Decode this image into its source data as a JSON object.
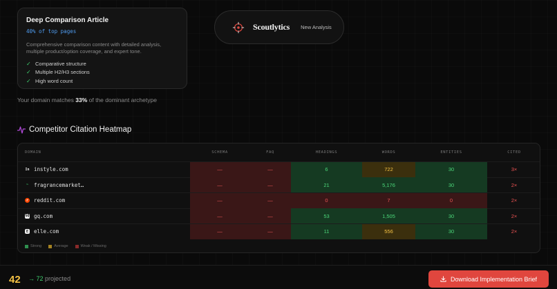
{
  "archetype": {
    "title": "Deep Comparison Article",
    "share": "40% of top pages",
    "description": "Comprehensive comparison content with detailed analysis, multiple product/option coverage, and expert tone.",
    "traits": [
      "Comparative structure",
      "Multiple H2/H3 sections",
      "High word count"
    ]
  },
  "match": {
    "prefix": "Your domain matches ",
    "value": "33%",
    "suffix": " of the dominant archetype"
  },
  "brand": {
    "name": "Scoutlytics",
    "new_analysis_label": "New Analysis",
    "icon": "target-crosshair-icon"
  },
  "heatmap": {
    "title": "Competitor Citation Heatmap",
    "icon": "activity-pulse-icon",
    "columns": [
      "DOMAIN",
      "SCHEMA",
      "FAQ",
      "HEADINGS",
      "WORDS",
      "ENTITIES",
      "CITED"
    ],
    "rows": [
      {
        "domain": "instyle.com",
        "favicon": "In",
        "schema": "—",
        "faq": "—",
        "headings": "6",
        "words": "722",
        "entities": "30",
        "cited": "3×",
        "status": {
          "schema": "weak",
          "faq": "weak",
          "headings": "strong",
          "words": "average",
          "entities": "strong"
        }
      },
      {
        "domain": "fragrancemarket…",
        "favicon": "~",
        "schema": "—",
        "faq": "—",
        "headings": "21",
        "words": "5,176",
        "entities": "30",
        "cited": "2×",
        "status": {
          "schema": "weak",
          "faq": "weak",
          "headings": "strong",
          "words": "strong",
          "entities": "strong"
        }
      },
      {
        "domain": "reddit.com",
        "favicon": "r",
        "schema": "—",
        "faq": "—",
        "headings": "0",
        "words": "7",
        "entities": "0",
        "cited": "2×",
        "status": {
          "schema": "weak",
          "faq": "weak",
          "headings": "weak",
          "words": "weak",
          "entities": "weak"
        }
      },
      {
        "domain": "gq.com",
        "favicon": "GQ",
        "schema": "—",
        "faq": "—",
        "headings": "53",
        "words": "1,505",
        "entities": "30",
        "cited": "2×",
        "status": {
          "schema": "weak",
          "faq": "weak",
          "headings": "strong",
          "words": "strong",
          "entities": "strong"
        }
      },
      {
        "domain": "elle.com",
        "favicon": "E",
        "schema": "—",
        "faq": "—",
        "headings": "11",
        "words": "556",
        "entities": "30",
        "cited": "2×",
        "status": {
          "schema": "weak",
          "faq": "weak",
          "headings": "strong",
          "words": "average",
          "entities": "strong"
        }
      }
    ],
    "legend": [
      {
        "label": "Strong",
        "color": "#2f8f4f"
      },
      {
        "label": "Average",
        "color": "#a58322"
      },
      {
        "label": "Weak / Missing",
        "color": "#8a2a2a"
      }
    ]
  },
  "footer": {
    "score": "42",
    "arrow": "→",
    "projected_value": "72",
    "projected_label": "projected",
    "download_label": "Download Implementation Brief"
  },
  "colors": {
    "accent_red": "#e0463e",
    "strong": "#4cd77a",
    "average": "#f5c244",
    "weak": "#ea5454",
    "link_blue": "#4f9cf0"
  }
}
